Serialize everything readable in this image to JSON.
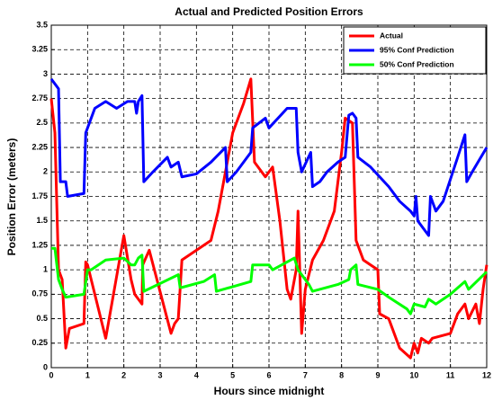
{
  "chart_data": {
    "type": "line",
    "title": "Actual and Predicted Position Errors",
    "xlabel": "Hours since midnight",
    "ylabel": "Position Error (meters)",
    "xlim": [
      0,
      12
    ],
    "ylim": [
      0,
      3.5
    ],
    "xticks": [
      0,
      1,
      2,
      3,
      4,
      5,
      6,
      7,
      8,
      9,
      10,
      11,
      12
    ],
    "yticks": [
      0,
      0.25,
      0.5,
      0.75,
      1,
      1.25,
      1.5,
      1.75,
      2,
      2.25,
      2.5,
      2.75,
      3,
      3.25,
      3.5
    ],
    "grid": true,
    "legend": "northeast",
    "series": [
      {
        "name": "Actual",
        "color": "#ff0000",
        "x": [
          0,
          0.1,
          0.2,
          0.3,
          0.4,
          0.5,
          0.9,
          0.95,
          1.0,
          1.5,
          2.0,
          2.2,
          2.3,
          2.5,
          2.52,
          2.7,
          3.3,
          3.4,
          3.5,
          3.6,
          4.0,
          4.4,
          4.6,
          5.0,
          5.3,
          5.5,
          5.6,
          5.9,
          6.1,
          6.3,
          6.5,
          6.6,
          6.75,
          6.8,
          6.9,
          7.0,
          7.2,
          7.5,
          7.8,
          8.0,
          8.1,
          8.3,
          8.4,
          8.6,
          8.8,
          9.0,
          9.05,
          9.3,
          9.6,
          9.9,
          10.0,
          10.1,
          10.2,
          10.4,
          10.5,
          11.0,
          11.2,
          11.4,
          11.5,
          11.7,
          11.8,
          11.9,
          12.0
        ],
        "values": [
          2.75,
          2.4,
          1.0,
          0.9,
          0.2,
          0.4,
          0.45,
          1.08,
          1.05,
          0.3,
          1.35,
          0.9,
          0.75,
          0.65,
          1.05,
          1.2,
          0.35,
          0.45,
          0.5,
          1.1,
          1.2,
          1.3,
          1.6,
          2.4,
          2.7,
          2.95,
          2.1,
          1.95,
          2.05,
          1.5,
          0.8,
          0.7,
          1.0,
          1.6,
          0.35,
          0.8,
          1.1,
          1.3,
          1.6,
          2.2,
          2.55,
          2.5,
          1.3,
          1.1,
          1.05,
          1.0,
          0.55,
          0.5,
          0.2,
          0.1,
          0.25,
          0.15,
          0.3,
          0.25,
          0.3,
          0.35,
          0.55,
          0.65,
          0.5,
          0.65,
          0.45,
          0.8,
          1.05
        ]
      },
      {
        "name": "95% Conf Prediction",
        "color": "#0000ff",
        "x": [
          0,
          0.1,
          0.2,
          0.25,
          0.4,
          0.45,
          0.9,
          0.95,
          1.2,
          1.5,
          1.8,
          2.1,
          2.3,
          2.35,
          2.4,
          2.5,
          2.55,
          2.8,
          3.2,
          3.3,
          3.5,
          3.6,
          4.0,
          4.4,
          4.8,
          4.85,
          5.1,
          5.5,
          5.55,
          5.9,
          6.0,
          6.5,
          6.75,
          6.8,
          6.9,
          7.15,
          7.2,
          7.4,
          7.6,
          7.9,
          8.1,
          8.2,
          8.3,
          8.4,
          8.45,
          8.8,
          9.3,
          9.6,
          9.9,
          10.0,
          10.05,
          10.1,
          10.4,
          10.45,
          10.6,
          10.8,
          11.2,
          11.4,
          11.45,
          11.6,
          12.0
        ],
        "values": [
          2.95,
          2.9,
          2.85,
          1.9,
          1.9,
          1.75,
          1.78,
          2.4,
          2.65,
          2.72,
          2.65,
          2.72,
          2.72,
          2.6,
          2.72,
          2.78,
          1.9,
          2.0,
          2.15,
          2.05,
          2.1,
          1.95,
          1.98,
          2.1,
          2.25,
          1.9,
          2.0,
          2.2,
          2.45,
          2.55,
          2.45,
          2.65,
          2.65,
          2.2,
          2.0,
          2.2,
          1.85,
          1.9,
          2.0,
          2.1,
          2.15,
          2.58,
          2.6,
          2.55,
          2.15,
          2.05,
          1.85,
          1.7,
          1.6,
          1.55,
          1.75,
          1.5,
          1.35,
          1.75,
          1.6,
          1.7,
          2.15,
          2.38,
          1.9,
          2.0,
          2.25
        ]
      },
      {
        "name": "50% Conf Prediction",
        "color": "#00ff00",
        "x": [
          0,
          0.1,
          0.2,
          0.3,
          0.4,
          0.9,
          1.0,
          1.1,
          1.5,
          2.0,
          2.2,
          2.3,
          2.4,
          2.5,
          2.55,
          3.5,
          3.55,
          3.6,
          4.2,
          4.5,
          4.55,
          5.5,
          5.55,
          6.0,
          6.1,
          6.7,
          6.8,
          7.1,
          7.2,
          7.9,
          8.2,
          8.25,
          8.4,
          8.45,
          9.0,
          9.3,
          9.8,
          9.9,
          10.0,
          10.3,
          10.4,
          10.6,
          11.0,
          11.4,
          11.5,
          12.0
        ],
        "values": [
          1.22,
          1.22,
          0.9,
          0.8,
          0.72,
          0.75,
          1.0,
          1.0,
          1.1,
          1.12,
          1.05,
          1.05,
          1.12,
          1.15,
          0.78,
          0.95,
          0.82,
          0.82,
          0.88,
          0.95,
          0.78,
          0.88,
          1.05,
          1.05,
          1.0,
          1.12,
          1.0,
          0.85,
          0.78,
          0.85,
          0.9,
          1.0,
          1.05,
          0.85,
          0.8,
          0.72,
          0.6,
          0.55,
          0.65,
          0.62,
          0.7,
          0.65,
          0.75,
          0.88,
          0.8,
          0.98
        ]
      }
    ]
  }
}
